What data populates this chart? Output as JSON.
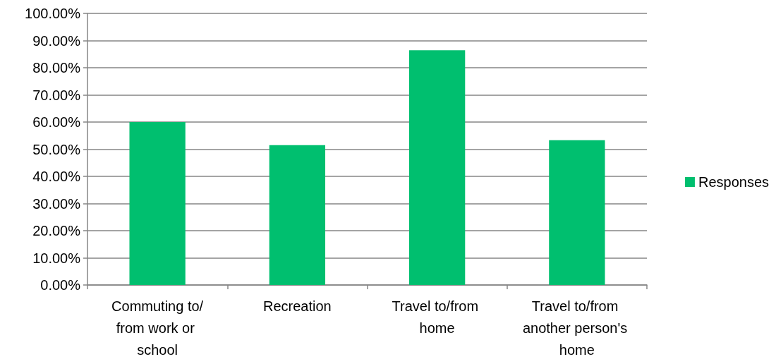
{
  "chart_data": {
    "type": "bar",
    "categories": [
      "Commuting to/from work or school",
      "Recreation",
      "Travel to/from home",
      "Travel to/from another person's home"
    ],
    "series": [
      {
        "name": "Responses",
        "color": "#00bf6f",
        "values": [
          60.0,
          51.5,
          86.4,
          53.3
        ]
      }
    ],
    "ylim": [
      0,
      100
    ],
    "yticks": [
      {
        "value": 0,
        "label": "0.00%"
      },
      {
        "value": 10,
        "label": "10.00%"
      },
      {
        "value": 20,
        "label": "20.00%"
      },
      {
        "value": 30,
        "label": "30.00%"
      },
      {
        "value": 40,
        "label": "40.00%"
      },
      {
        "value": 50,
        "label": "50.00%"
      },
      {
        "value": 60,
        "label": "60.00%"
      },
      {
        "value": 70,
        "label": "70.00%"
      },
      {
        "value": 80,
        "label": "80.00%"
      },
      {
        "value": 90,
        "label": "90.00%"
      },
      {
        "value": 100,
        "label": "100.00%"
      }
    ],
    "grid": "y",
    "legend": "right"
  }
}
